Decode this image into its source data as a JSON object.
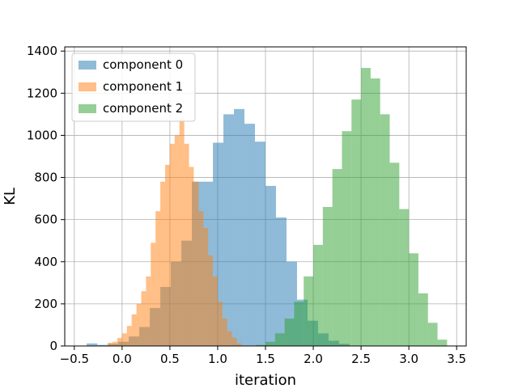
{
  "chart_data": {
    "type": "histogram",
    "title": "",
    "xlabel": "iteration",
    "ylabel": "KL",
    "xlim": [
      -0.6,
      3.6
    ],
    "ylim": [
      0,
      1420
    ],
    "xticks": [
      -0.5,
      0.0,
      0.5,
      1.0,
      1.5,
      2.0,
      2.5,
      3.0,
      3.5
    ],
    "xtick_labels": [
      "−0.5",
      "0.0",
      "0.5",
      "1.0",
      "1.5",
      "2.0",
      "2.5",
      "3.0",
      "3.5"
    ],
    "yticks": [
      0,
      200,
      400,
      600,
      800,
      1000,
      1200,
      1400
    ],
    "ytick_labels": [
      "0",
      "200",
      "400",
      "600",
      "800",
      "1000",
      "1200",
      "1400"
    ],
    "grid": true,
    "legend": "upper left",
    "series": [
      {
        "name": "component 0",
        "color": "#1f77b4",
        "alpha": 0.5,
        "bins": [
          [
            -0.37,
            -0.26,
            12
          ],
          [
            -0.26,
            -0.15,
            5
          ],
          [
            -0.15,
            -0.04,
            10
          ],
          [
            -0.04,
            0.07,
            20
          ],
          [
            0.07,
            0.18,
            45
          ],
          [
            0.18,
            0.29,
            90
          ],
          [
            0.29,
            0.4,
            180
          ],
          [
            0.4,
            0.51,
            280
          ],
          [
            0.51,
            0.62,
            400
          ],
          [
            0.62,
            0.73,
            500
          ],
          [
            0.73,
            0.84,
            780
          ],
          [
            0.84,
            0.95,
            780
          ],
          [
            0.95,
            1.06,
            965
          ],
          [
            1.06,
            1.17,
            1100
          ],
          [
            1.17,
            1.28,
            1125
          ],
          [
            1.28,
            1.39,
            1055
          ],
          [
            1.39,
            1.5,
            970
          ],
          [
            1.5,
            1.61,
            760
          ],
          [
            1.61,
            1.72,
            610
          ],
          [
            1.72,
            1.83,
            400
          ],
          [
            1.83,
            1.94,
            220
          ],
          [
            1.94,
            2.05,
            120
          ],
          [
            2.05,
            2.16,
            60
          ],
          [
            2.16,
            2.27,
            25
          ],
          [
            2.27,
            2.38,
            10
          ]
        ]
      },
      {
        "name": "component 1",
        "color": "#ff7f0e",
        "alpha": 0.5,
        "bins": [
          [
            -0.15,
            -0.1,
            15
          ],
          [
            -0.1,
            -0.05,
            20
          ],
          [
            -0.05,
            0.0,
            38
          ],
          [
            0.0,
            0.05,
            60
          ],
          [
            0.05,
            0.1,
            95
          ],
          [
            0.1,
            0.15,
            150
          ],
          [
            0.15,
            0.2,
            200
          ],
          [
            0.2,
            0.25,
            260
          ],
          [
            0.25,
            0.3,
            330
          ],
          [
            0.3,
            0.35,
            490
          ],
          [
            0.35,
            0.4,
            640
          ],
          [
            0.4,
            0.45,
            780
          ],
          [
            0.45,
            0.5,
            860
          ],
          [
            0.5,
            0.55,
            960
          ],
          [
            0.55,
            0.6,
            1000
          ],
          [
            0.6,
            0.65,
            1075
          ],
          [
            0.65,
            0.7,
            960
          ],
          [
            0.7,
            0.75,
            850
          ],
          [
            0.75,
            0.8,
            780
          ],
          [
            0.8,
            0.85,
            640
          ],
          [
            0.85,
            0.9,
            560
          ],
          [
            0.9,
            0.95,
            430
          ],
          [
            0.95,
            1.0,
            330
          ],
          [
            1.0,
            1.05,
            210
          ],
          [
            1.05,
            1.1,
            130
          ],
          [
            1.1,
            1.15,
            70
          ],
          [
            1.15,
            1.2,
            40
          ],
          [
            1.2,
            1.25,
            12
          ]
        ]
      },
      {
        "name": "component 2",
        "color": "#2ca02c",
        "alpha": 0.5,
        "bins": [
          [
            1.4,
            1.5,
            5
          ],
          [
            1.5,
            1.6,
            20
          ],
          [
            1.6,
            1.7,
            60
          ],
          [
            1.7,
            1.8,
            130
          ],
          [
            1.8,
            1.9,
            210
          ],
          [
            1.9,
            2.0,
            330
          ],
          [
            2.0,
            2.1,
            480
          ],
          [
            2.1,
            2.2,
            660
          ],
          [
            2.2,
            2.3,
            840
          ],
          [
            2.3,
            2.4,
            1020
          ],
          [
            2.4,
            2.5,
            1170
          ],
          [
            2.5,
            2.6,
            1320
          ],
          [
            2.6,
            2.7,
            1270
          ],
          [
            2.7,
            2.8,
            1100
          ],
          [
            2.8,
            2.9,
            870
          ],
          [
            2.9,
            3.0,
            650
          ],
          [
            3.0,
            3.1,
            440
          ],
          [
            3.1,
            3.2,
            250
          ],
          [
            3.2,
            3.3,
            110
          ],
          [
            3.3,
            3.4,
            30
          ]
        ]
      }
    ]
  }
}
